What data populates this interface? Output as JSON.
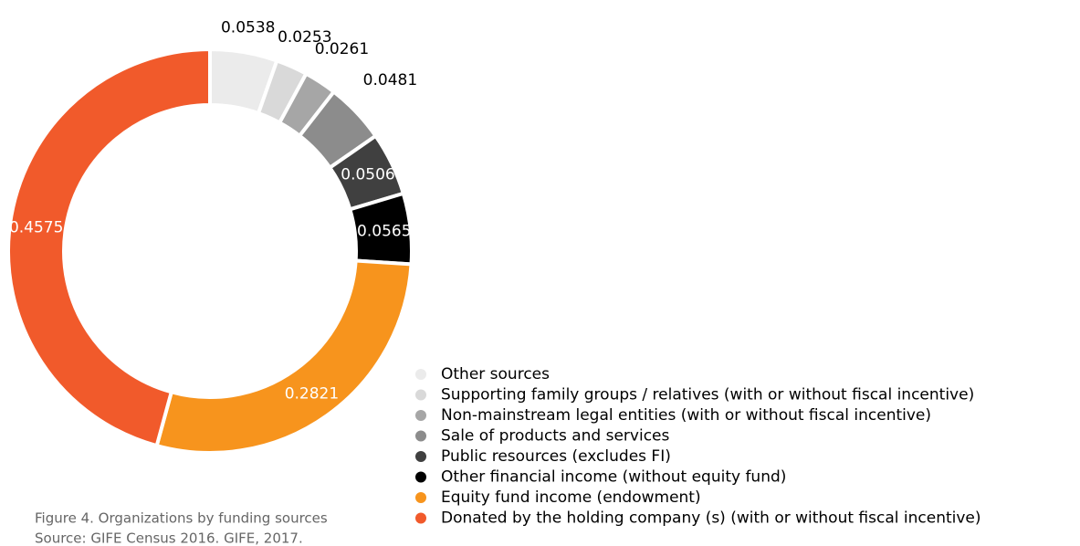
{
  "chart_data": {
    "type": "donut",
    "categories": [
      "Other sources",
      "Supporting family groups / relatives (with or without fiscal incentive)",
      "Non-mainstream legal entities (with or without fiscal incentive)",
      "Sale of products and services",
      "Public resources (excludes FI)",
      "Other financial income (without equity fund)",
      "Equity fund income (endowment)",
      "Donated by the holding company (s) (with or without fiscal incentive)"
    ],
    "values": [
      0.0538,
      0.0253,
      0.0261,
      0.0481,
      0.0506,
      0.0565,
      0.2821,
      0.4575
    ],
    "colors": [
      "#ebebeb",
      "#d9d9d9",
      "#a6a6a6",
      "#8c8c8c",
      "#404040",
      "#000000",
      "#f7941d",
      "#f15a2b"
    ],
    "legend": "bottom-right",
    "caption": "Figure 4. Organizations by funding sources",
    "source": "Source: GIFE Census 2016. GIFE, 2017."
  }
}
